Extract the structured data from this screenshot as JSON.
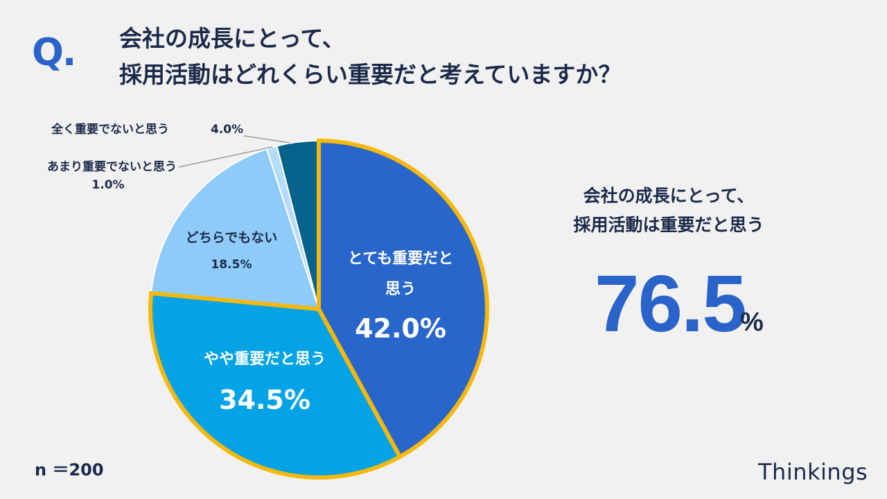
{
  "question": {
    "mark": "Q.",
    "line1": "会社の成長にとって、",
    "line2": "採用活動はどれくらい重要だと考えていますか？"
  },
  "chart_data": {
    "type": "pie",
    "categories": [
      "とても重要だと思う",
      "やや重要だと思う",
      "どちらでもない",
      "あまり重要でないと思う",
      "全く重要でないと思う"
    ],
    "values": [
      42.0,
      34.5,
      18.5,
      1.0,
      4.0
    ],
    "value_labels": [
      "42.0%",
      "34.5%",
      "18.5%",
      "1.0%",
      "4.0%"
    ],
    "colors": [
      "#2966cc",
      "#04a3e6",
      "#8ecbf9",
      "#b6dcfb",
      "#05628a"
    ],
    "highlight_color": "#f6b80c",
    "highlighted": [
      0,
      1
    ],
    "label_text": {
      "very": [
        "とても重要だと",
        "思う"
      ],
      "somewhat": "やや重要だと思う",
      "neutral": "どちらでもない",
      "not_much": "あまり重要でないと思う",
      "not_at_all": "全く重要でないと思う"
    }
  },
  "summary": {
    "line1": "会社の成長にとって、",
    "line2": "採用活動は重要だと思う",
    "value": "76.5",
    "unit": "%"
  },
  "sample_size": "n ＝200",
  "logo": "Thinkings"
}
